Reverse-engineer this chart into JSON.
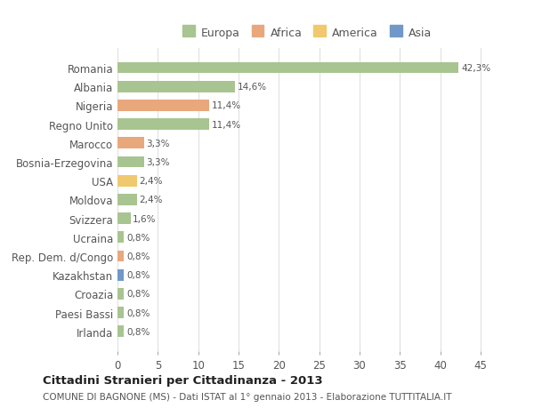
{
  "countries": [
    "Romania",
    "Albania",
    "Nigeria",
    "Regno Unito",
    "Marocco",
    "Bosnia-Erzegovina",
    "USA",
    "Moldova",
    "Svizzera",
    "Ucraina",
    "Rep. Dem. d/Congo",
    "Kazakhstan",
    "Croazia",
    "Paesi Bassi",
    "Irlanda"
  ],
  "values": [
    42.3,
    14.6,
    11.4,
    11.4,
    3.3,
    3.3,
    2.4,
    2.4,
    1.6,
    0.8,
    0.8,
    0.8,
    0.8,
    0.8,
    0.8
  ],
  "labels": [
    "42,3%",
    "14,6%",
    "11,4%",
    "11,4%",
    "3,3%",
    "3,3%",
    "2,4%",
    "2,4%",
    "1,6%",
    "0,8%",
    "0,8%",
    "0,8%",
    "0,8%",
    "0,8%",
    "0,8%"
  ],
  "continents": [
    "Europa",
    "Europa",
    "Africa",
    "Europa",
    "Africa",
    "Europa",
    "America",
    "Europa",
    "Europa",
    "Europa",
    "Africa",
    "Asia",
    "Europa",
    "Europa",
    "Europa"
  ],
  "colors": {
    "Europa": "#a8c490",
    "Africa": "#e8a87c",
    "America": "#f0c96e",
    "Asia": "#7098c8"
  },
  "legend_order": [
    "Europa",
    "Africa",
    "America",
    "Asia"
  ],
  "title": "Cittadini Stranieri per Cittadinanza - 2013",
  "subtitle": "COMUNE DI BAGNONE (MS) - Dati ISTAT al 1° gennaio 2013 - Elaborazione TUTTITALIA.IT",
  "xlim": [
    0,
    47
  ],
  "xticks": [
    0,
    5,
    10,
    15,
    20,
    25,
    30,
    35,
    40,
    45
  ],
  "bg_color": "#ffffff",
  "grid_color": "#e0e0e0",
  "bar_height": 0.6
}
